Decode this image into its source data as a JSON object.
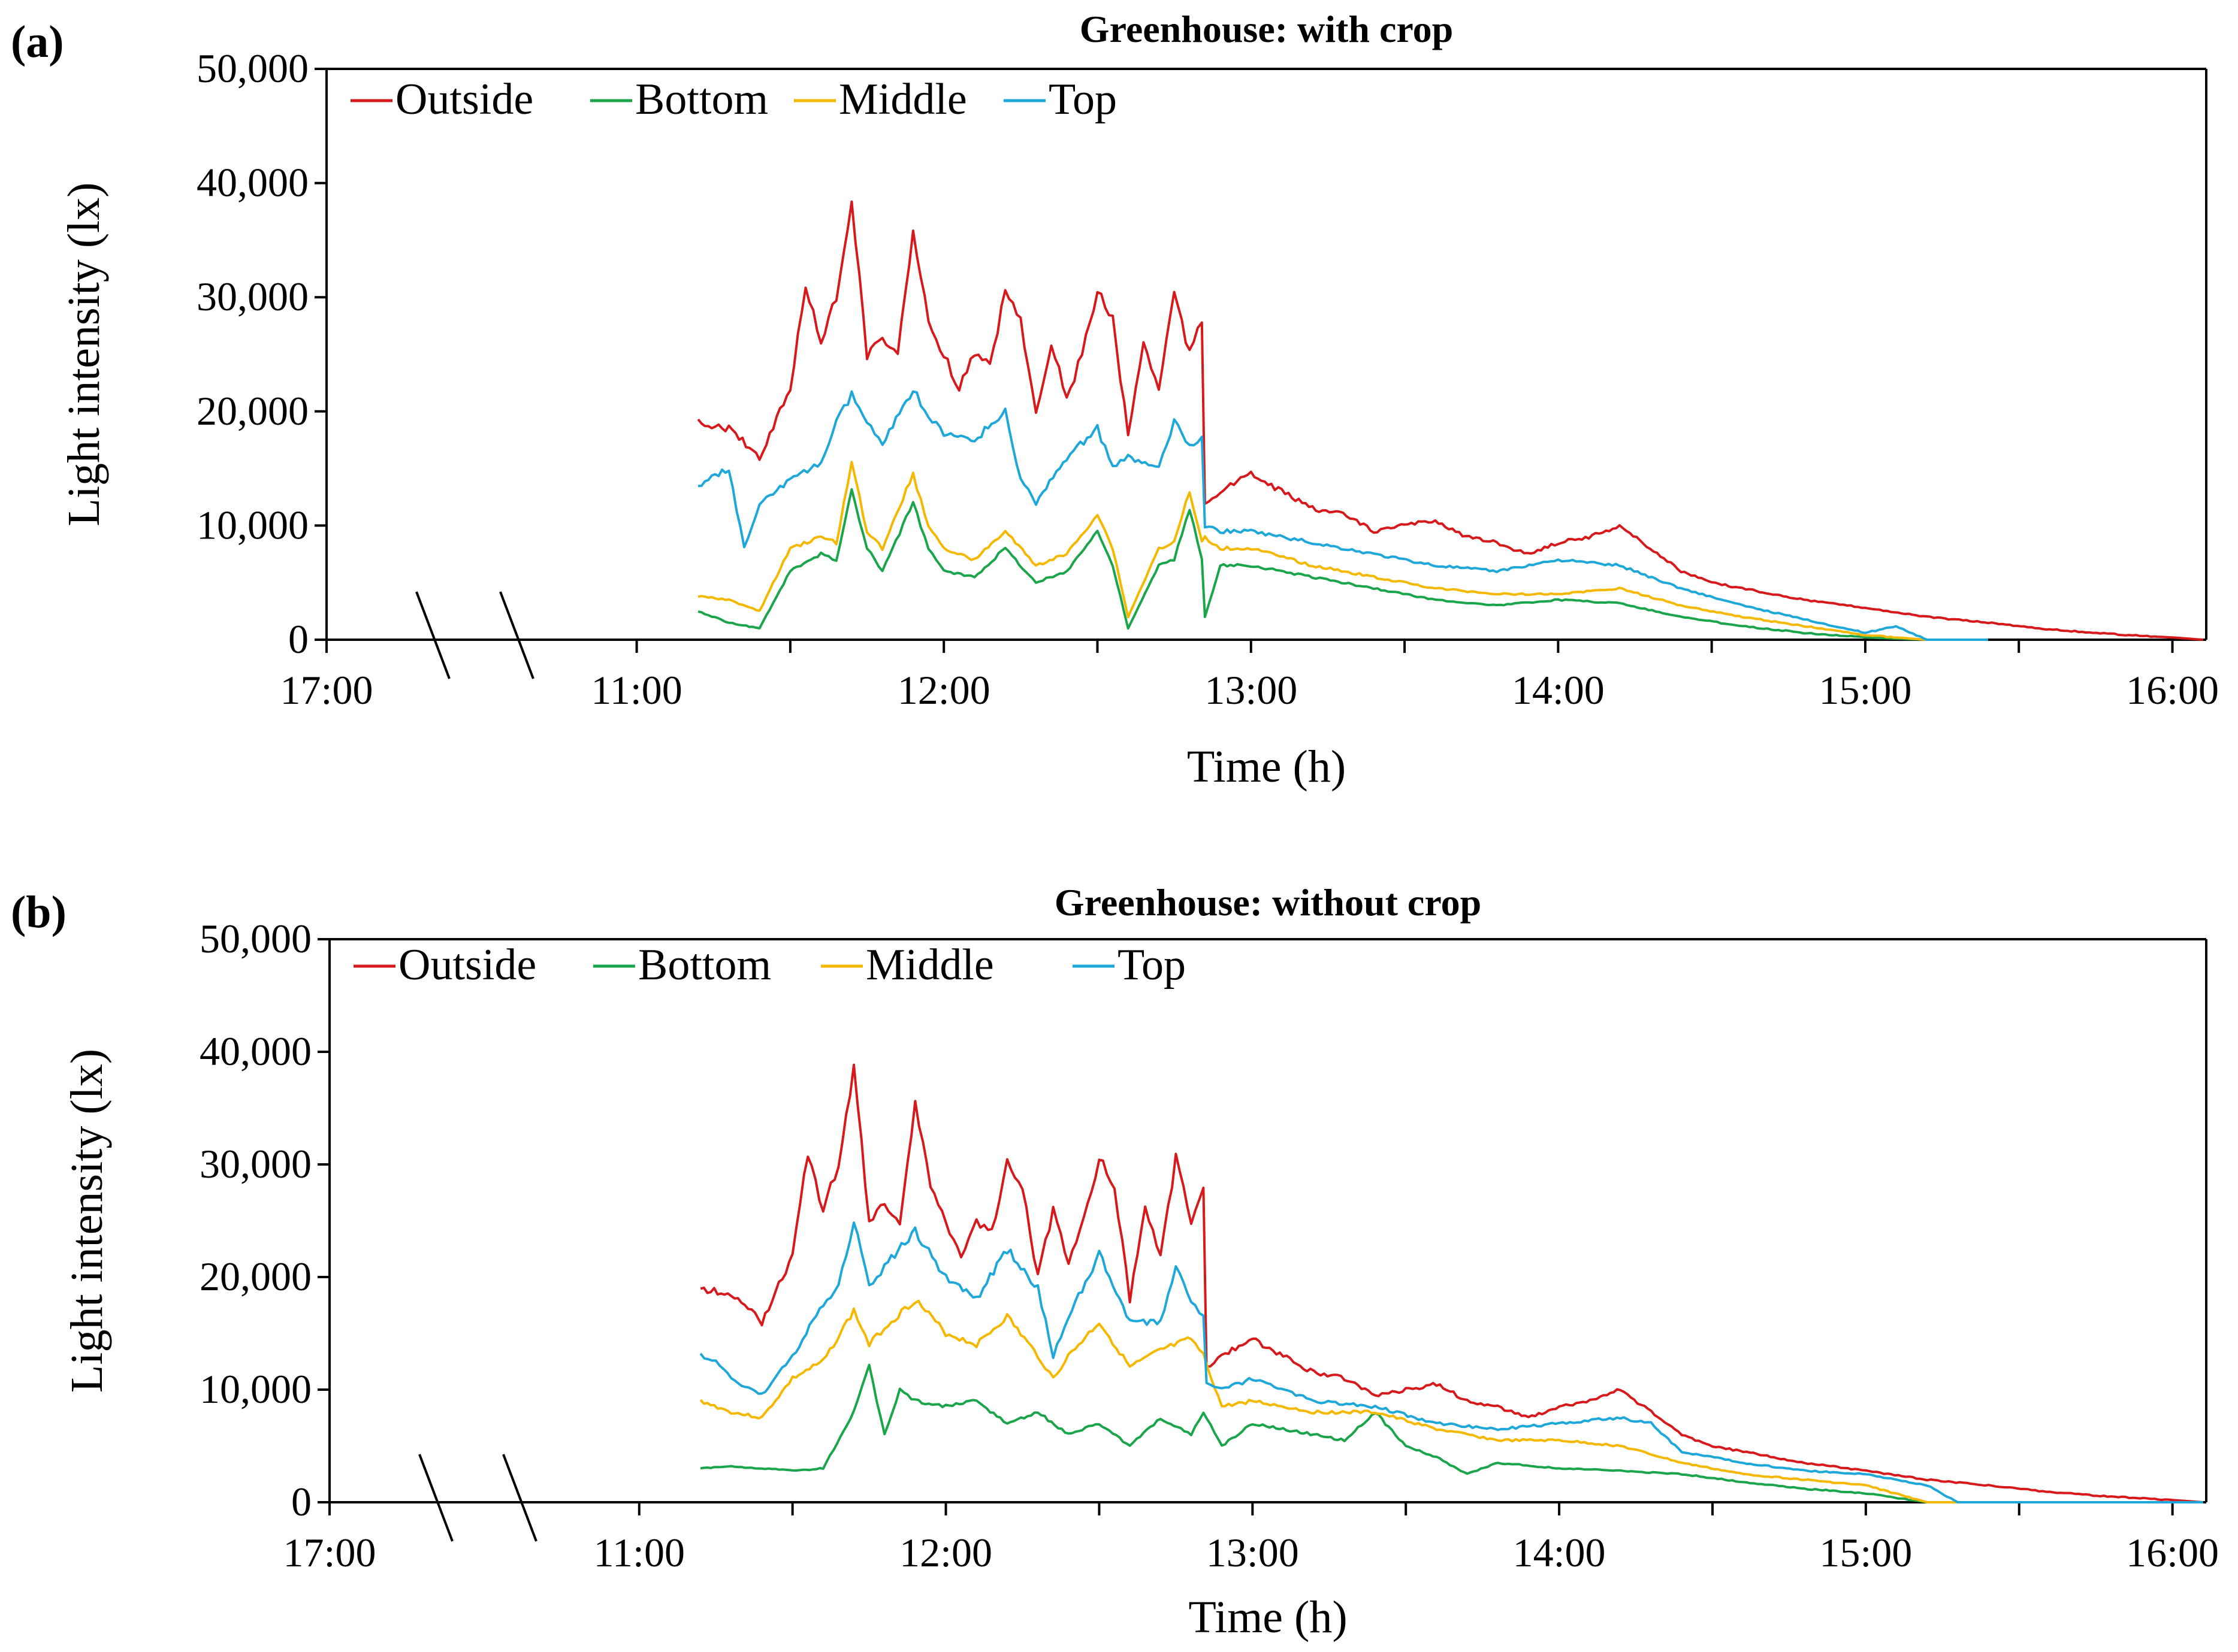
{
  "chart_data": [
    {
      "type": "line",
      "panel_label": "(a)",
      "title": "Greenhouse: with crop",
      "xlabel": "Time (h)",
      "ylabel": "Light intensity (lx)",
      "ylim": [
        0,
        50000
      ],
      "yticks": [
        0,
        10000,
        20000,
        30000,
        40000,
        50000
      ],
      "ytick_labels": [
        "0",
        "10,000",
        "20,000",
        "30,000",
        "40,000",
        "50,000"
      ],
      "xlim": [
        10.0,
        16.1
      ],
      "x_break_label": "17:00",
      "x_break_at": 10.0,
      "xticks": [
        11,
        12,
        13,
        14,
        15,
        16
      ],
      "xtick_labels": [
        "11:00",
        "12:00",
        "13:00",
        "14:00",
        "15:00",
        "16:00"
      ],
      "x_minor_ticks": [
        11.5,
        12.5,
        13.5,
        14.5,
        15.5
      ],
      "legend_position": "top-left",
      "series": [
        {
          "name": "Outside",
          "color": "#d7191c",
          "x": [
            11.2,
            11.3,
            11.4,
            11.5,
            11.55,
            11.6,
            11.65,
            11.7,
            11.75,
            11.8,
            11.85,
            11.9,
            11.95,
            12.0,
            12.05,
            12.1,
            12.15,
            12.2,
            12.25,
            12.3,
            12.35,
            12.4,
            12.45,
            12.5,
            12.55,
            12.6,
            12.65,
            12.7,
            12.75,
            12.8,
            12.84,
            12.85,
            12.9,
            13.0,
            13.1,
            13.2,
            13.3,
            13.4,
            13.5,
            13.6,
            13.7,
            13.8,
            13.9,
            14.0,
            14.1,
            14.2,
            14.3,
            14.4,
            14.5,
            14.6,
            14.7,
            14.8,
            15.0,
            15.2,
            15.4,
            15.6,
            15.8,
            16.0,
            16.1
          ],
          "y": [
            19000,
            18500,
            16000,
            22000,
            31000,
            26000,
            30000,
            38500,
            25000,
            26500,
            25000,
            35500,
            28000,
            25000,
            22000,
            25000,
            24000,
            30500,
            28000,
            20000,
            26000,
            21000,
            25000,
            30500,
            28000,
            18000,
            26000,
            22000,
            30500,
            25000,
            28000,
            12000,
            13000,
            14500,
            13000,
            11500,
            11000,
            9500,
            10000,
            10500,
            9000,
            8500,
            7500,
            8500,
            9000,
            10000,
            8000,
            6000,
            5000,
            4500,
            4000,
            3500,
            2800,
            2000,
            1500,
            900,
            500,
            200,
            0
          ]
        },
        {
          "name": "Bottom",
          "color": "#1aa54b",
          "x": [
            11.2,
            11.3,
            11.4,
            11.5,
            11.6,
            11.65,
            11.7,
            11.75,
            11.8,
            11.9,
            11.95,
            12.0,
            12.1,
            12.2,
            12.3,
            12.4,
            12.5,
            12.55,
            12.6,
            12.7,
            12.75,
            12.8,
            12.84,
            12.85,
            12.9,
            13.0,
            13.2,
            13.4,
            13.6,
            13.8,
            14.0,
            14.2,
            14.4,
            14.6,
            14.8,
            15.0,
            15.2,
            15.4
          ],
          "y": [
            2500,
            1500,
            1000,
            6000,
            7500,
            7000,
            13000,
            8000,
            6000,
            12000,
            8000,
            6000,
            5500,
            8000,
            5000,
            6000,
            9500,
            6500,
            1000,
            6500,
            7000,
            11500,
            7000,
            2000,
            6500,
            6500,
            5500,
            4500,
            3500,
            3000,
            3500,
            3200,
            2000,
            1200,
            600,
            200,
            0,
            0
          ]
        },
        {
          "name": "Middle",
          "color": "#f5b800",
          "x": [
            11.2,
            11.3,
            11.4,
            11.5,
            11.6,
            11.65,
            11.7,
            11.75,
            11.8,
            11.9,
            11.95,
            12.0,
            12.1,
            12.2,
            12.3,
            12.4,
            12.5,
            12.55,
            12.6,
            12.7,
            12.75,
            12.8,
            12.84,
            12.85,
            12.9,
            13.0,
            13.2,
            13.4,
            13.6,
            13.8,
            14.0,
            14.2,
            14.4,
            14.6,
            14.8,
            15.0,
            15.2,
            15.4
          ],
          "y": [
            3800,
            3500,
            2500,
            8000,
            9000,
            8500,
            15500,
            9500,
            8000,
            14500,
            10000,
            8000,
            7000,
            9500,
            6500,
            7500,
            11000,
            8000,
            2000,
            8000,
            8500,
            13000,
            8500,
            9000,
            8000,
            8000,
            6500,
            5500,
            4500,
            4000,
            4000,
            4500,
            3000,
            2000,
            1200,
            400,
            0,
            0
          ]
        },
        {
          "name": "Top",
          "color": "#1ea7d9",
          "x": [
            11.2,
            11.3,
            11.35,
            11.4,
            11.5,
            11.6,
            11.65,
            11.7,
            11.75,
            11.8,
            11.9,
            11.95,
            12.0,
            12.1,
            12.2,
            12.25,
            12.3,
            12.4,
            12.5,
            12.55,
            12.6,
            12.7,
            12.75,
            12.8,
            12.84,
            12.85,
            12.9,
            13.0,
            13.2,
            13.4,
            13.6,
            13.8,
            14.0,
            14.2,
            14.4,
            14.6,
            14.8,
            15.0,
            15.1,
            15.2,
            15.4
          ],
          "y": [
            13500,
            15000,
            8000,
            12000,
            14000,
            15500,
            19000,
            21500,
            19000,
            17000,
            22000,
            19500,
            18000,
            17500,
            20000,
            14000,
            12000,
            16000,
            18500,
            15000,
            16000,
            15000,
            19000,
            17000,
            17500,
            10000,
            9500,
            9500,
            8500,
            7500,
            6500,
            6000,
            7000,
            6500,
            4500,
            3000,
            1800,
            600,
            1200,
            0,
            0
          ]
        }
      ]
    },
    {
      "type": "line",
      "panel_label": "(b)",
      "title": "Greenhouse: without crop",
      "xlabel": "Time (h)",
      "ylabel": "Light intensity (lx)",
      "ylim": [
        0,
        50000
      ],
      "yticks": [
        0,
        10000,
        20000,
        30000,
        40000,
        50000
      ],
      "ytick_labels": [
        "0",
        "10,000",
        "20,000",
        "30,000",
        "40,000",
        "50,000"
      ],
      "xlim": [
        10.0,
        16.1
      ],
      "x_break_label": "17:00",
      "x_break_at": 10.0,
      "xticks": [
        11,
        12,
        13,
        14,
        15,
        16
      ],
      "xtick_labels": [
        "11:00",
        "12:00",
        "13:00",
        "14:00",
        "15:00",
        "16:00"
      ],
      "x_minor_ticks": [
        11.5,
        12.5,
        13.5,
        14.5,
        15.5
      ],
      "legend_position": "top-left",
      "series": [
        {
          "name": "Outside",
          "color": "#d7191c",
          "x": [
            11.2,
            11.3,
            11.4,
            11.5,
            11.55,
            11.6,
            11.65,
            11.7,
            11.75,
            11.8,
            11.85,
            11.9,
            11.95,
            12.0,
            12.05,
            12.1,
            12.15,
            12.2,
            12.25,
            12.3,
            12.35,
            12.4,
            12.45,
            12.5,
            12.55,
            12.6,
            12.65,
            12.7,
            12.75,
            12.8,
            12.84,
            12.85,
            12.9,
            13.0,
            13.1,
            13.2,
            13.3,
            13.4,
            13.5,
            13.6,
            13.7,
            13.8,
            13.9,
            14.0,
            14.1,
            14.2,
            14.3,
            14.4,
            14.5,
            14.6,
            14.7,
            14.8,
            15.0,
            15.2,
            15.4,
            15.6,
            15.8,
            16.0,
            16.1
          ],
          "y": [
            19000,
            18500,
            16000,
            22000,
            31000,
            26000,
            30000,
            38500,
            25000,
            26500,
            25000,
            35500,
            28000,
            25000,
            22000,
            25000,
            24000,
            30500,
            28000,
            20000,
            26000,
            21000,
            25000,
            30500,
            28000,
            18000,
            26000,
            22000,
            30500,
            25000,
            28000,
            12000,
            13000,
            14500,
            13000,
            11500,
            11000,
            9500,
            10000,
            10500,
            9000,
            8500,
            7500,
            8500,
            9000,
            10000,
            8000,
            6000,
            5000,
            4500,
            4000,
            3500,
            2800,
            2000,
            1500,
            900,
            500,
            200,
            0
          ]
        },
        {
          "name": "Bottom",
          "color": "#1aa54b",
          "x": [
            11.2,
            11.3,
            11.4,
            11.5,
            11.6,
            11.7,
            11.75,
            11.8,
            11.85,
            11.9,
            12.0,
            12.1,
            12.2,
            12.3,
            12.4,
            12.5,
            12.6,
            12.7,
            12.8,
            12.84,
            12.9,
            13.0,
            13.1,
            13.2,
            13.3,
            13.4,
            13.5,
            13.6,
            13.7,
            13.8,
            14.0,
            14.2,
            14.4,
            14.6,
            14.8,
            15.0,
            15.2,
            15.3
          ],
          "y": [
            3000,
            3200,
            3000,
            2800,
            3000,
            8000,
            12000,
            6000,
            10000,
            9000,
            8500,
            9000,
            7000,
            8000,
            6000,
            7000,
            5000,
            7500,
            6000,
            8000,
            5000,
            7000,
            6500,
            6000,
            5500,
            8000,
            5000,
            4000,
            2500,
            3500,
            3000,
            2800,
            2500,
            1800,
            1200,
            800,
            0,
            0
          ]
        },
        {
          "name": "Middle",
          "color": "#f5b800",
          "x": [
            11.2,
            11.3,
            11.4,
            11.5,
            11.6,
            11.7,
            11.75,
            11.8,
            11.9,
            12.0,
            12.1,
            12.2,
            12.3,
            12.35,
            12.4,
            12.5,
            12.6,
            12.7,
            12.8,
            12.84,
            12.9,
            13.0,
            13.2,
            13.4,
            13.6,
            13.8,
            14.0,
            14.2,
            14.4,
            14.6,
            14.8,
            15.0,
            15.2,
            15.3
          ],
          "y": [
            9000,
            8000,
            7500,
            11000,
            12500,
            17000,
            14000,
            15500,
            18000,
            15000,
            14000,
            16500,
            13000,
            11000,
            13000,
            16000,
            12000,
            13500,
            14500,
            13000,
            8500,
            9000,
            8000,
            8000,
            6500,
            5500,
            5500,
            5000,
            3500,
            2500,
            2000,
            1500,
            0,
            0
          ]
        },
        {
          "name": "Top",
          "color": "#1ea7d9",
          "x": [
            11.2,
            11.25,
            11.3,
            11.4,
            11.5,
            11.6,
            11.65,
            11.7,
            11.75,
            11.8,
            11.9,
            12.0,
            12.1,
            12.2,
            12.3,
            12.35,
            12.4,
            12.5,
            12.6,
            12.7,
            12.75,
            12.8,
            12.84,
            12.85,
            12.9,
            13.0,
            13.2,
            13.4,
            13.6,
            13.8,
            14.0,
            14.2,
            14.3,
            14.4,
            14.6,
            14.8,
            15.0,
            15.2,
            15.3,
            15.6,
            15.8,
            16.1
          ],
          "y": [
            13000,
            12500,
            11000,
            9500,
            13000,
            17500,
            19000,
            25000,
            19000,
            21000,
            24000,
            20000,
            18000,
            22500,
            19000,
            13000,
            16500,
            22000,
            16000,
            16000,
            21000,
            18000,
            16500,
            10500,
            10000,
            11000,
            9000,
            8500,
            7000,
            6500,
            7000,
            7500,
            7000,
            4500,
            3500,
            2800,
            2500,
            1500,
            0,
            0,
            0,
            0
          ]
        }
      ]
    }
  ]
}
